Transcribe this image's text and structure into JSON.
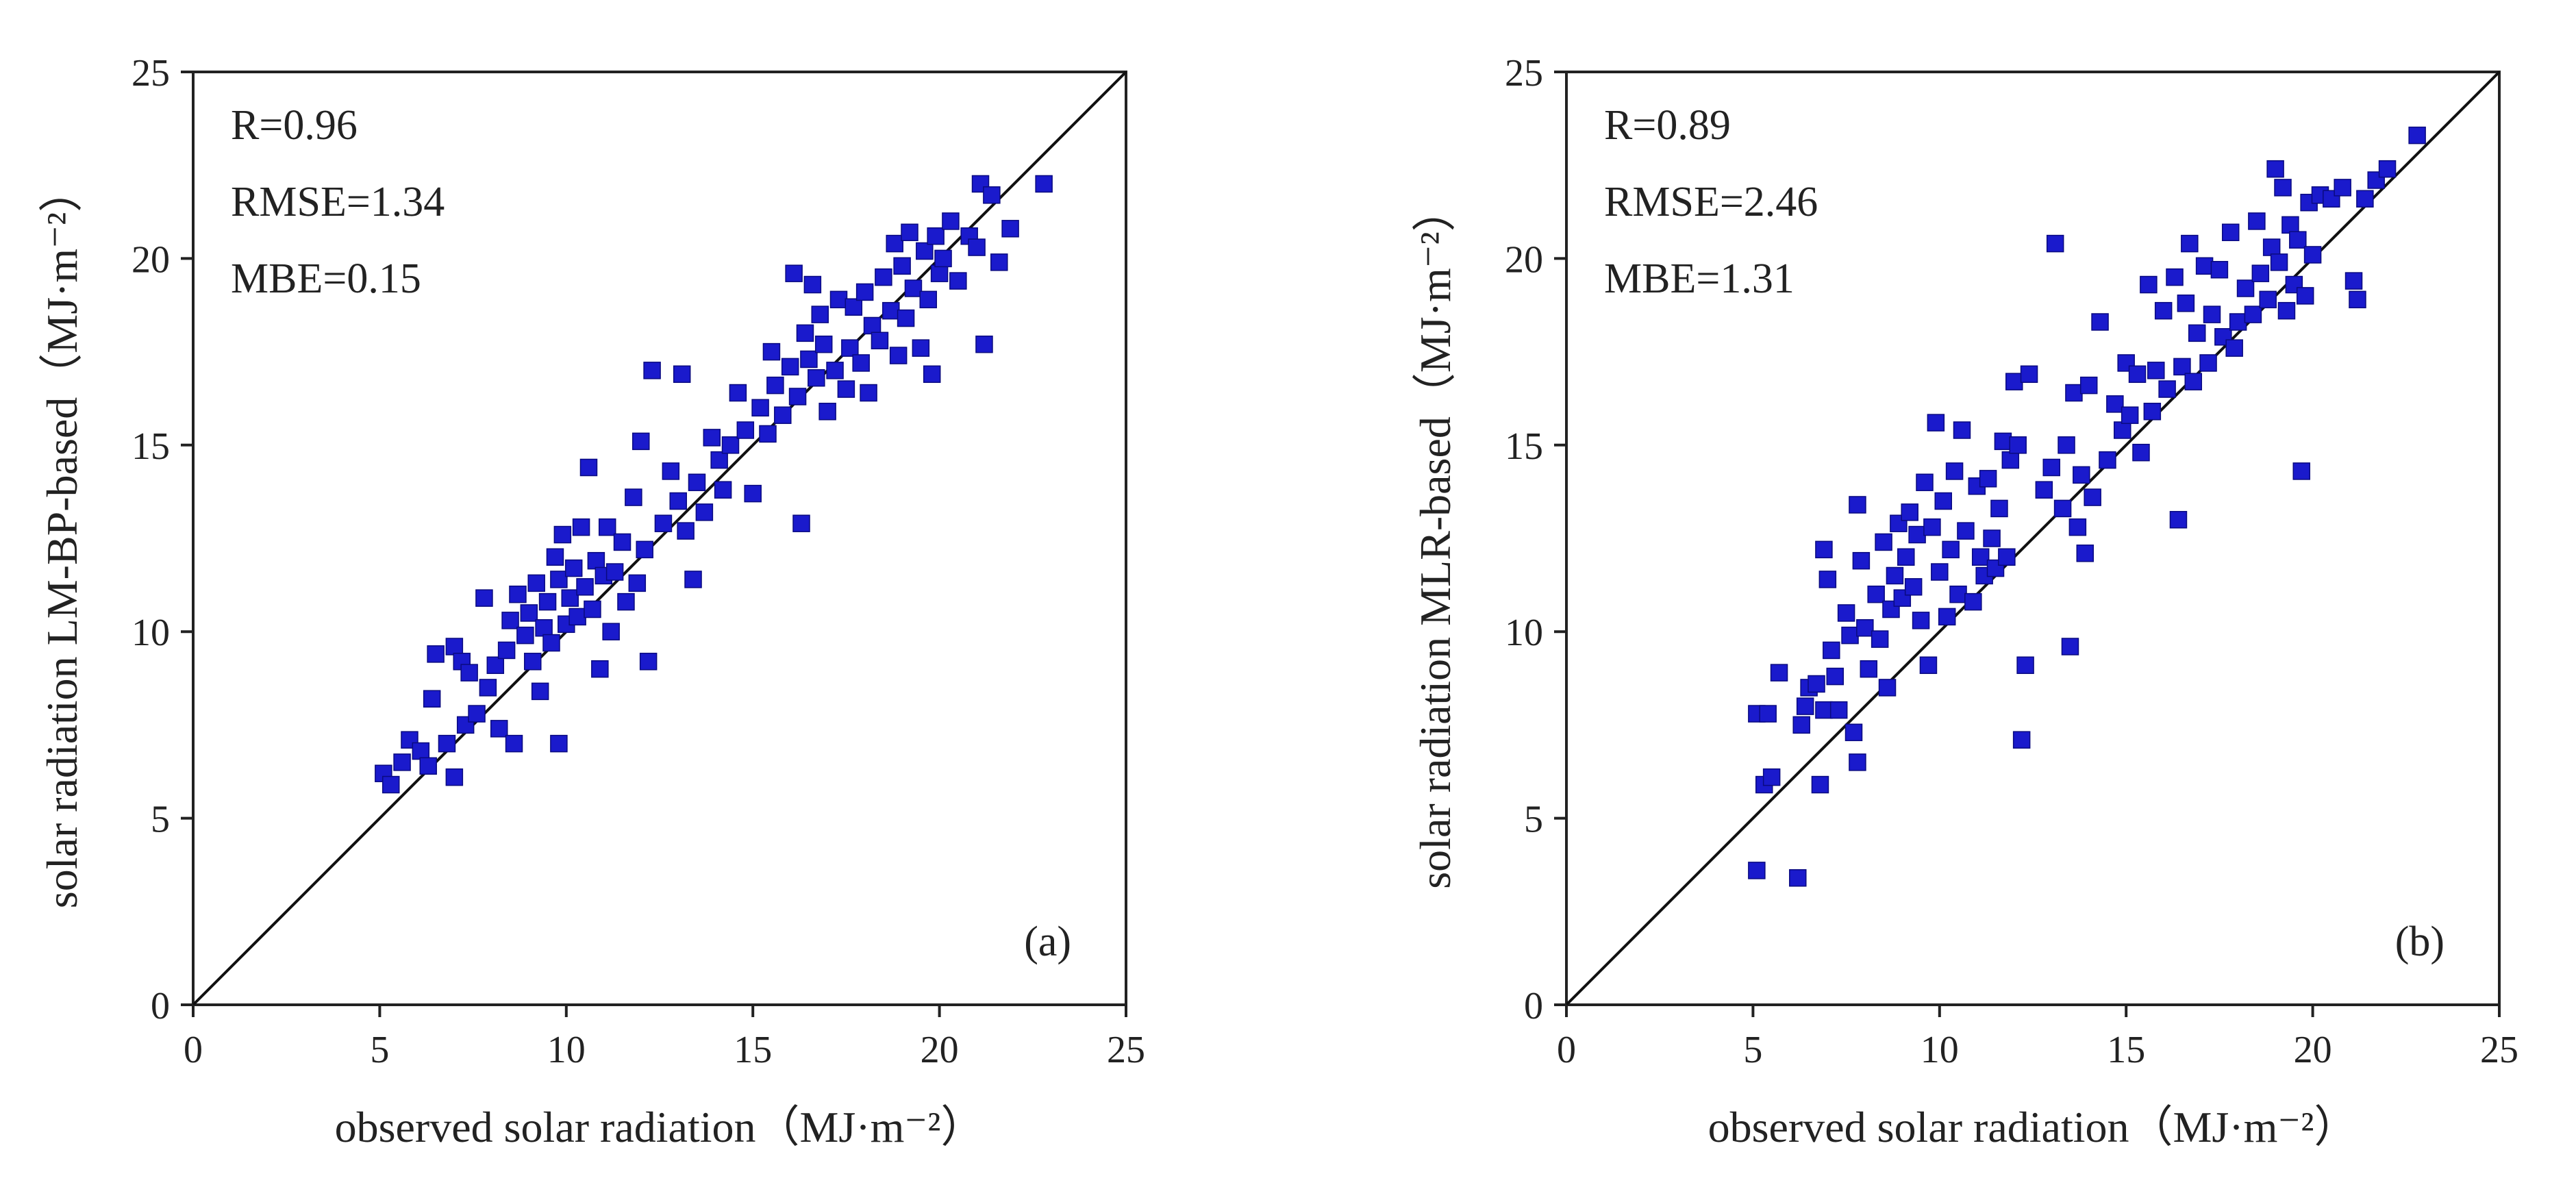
{
  "colors": {
    "point": "#1a1acc",
    "point_stroke": "#0a0a80",
    "axis": "#222222",
    "line": "#111111"
  },
  "chart_data": [
    {
      "type": "scatter",
      "panel_label": "(a)",
      "xlabel": "observed solar radiation（MJ·m⁻²）",
      "ylabel": "solar radiation LM-BP-based（MJ·m⁻²）",
      "xlim": [
        0,
        25
      ],
      "ylim": [
        0,
        25
      ],
      "xticks": [
        "0",
        "5",
        "10",
        "15",
        "20",
        "25"
      ],
      "yticks": [
        "0",
        "5",
        "10",
        "15",
        "20",
        "25"
      ],
      "grid": false,
      "reference_line": "1:1",
      "stats": [
        "R=0.96",
        "RMSE=1.34",
        "MBE=0.15"
      ],
      "points": [
        [
          5.1,
          6.2
        ],
        [
          5.3,
          5.9
        ],
        [
          5.6,
          6.5
        ],
        [
          5.8,
          7.1
        ],
        [
          6.1,
          6.8
        ],
        [
          6.3,
          6.4
        ],
        [
          6.4,
          8.2
        ],
        [
          6.5,
          9.4
        ],
        [
          6.8,
          7.0
        ],
        [
          7.0,
          6.1
        ],
        [
          7.0,
          9.6
        ],
        [
          7.2,
          9.2
        ],
        [
          7.3,
          7.5
        ],
        [
          7.4,
          8.9
        ],
        [
          7.6,
          7.8
        ],
        [
          7.8,
          10.9
        ],
        [
          7.9,
          8.5
        ],
        [
          8.1,
          9.1
        ],
        [
          8.2,
          7.4
        ],
        [
          8.4,
          9.5
        ],
        [
          8.5,
          10.3
        ],
        [
          8.6,
          7.0
        ],
        [
          8.7,
          11.0
        ],
        [
          8.9,
          9.9
        ],
        [
          9.0,
          10.5
        ],
        [
          9.1,
          9.2
        ],
        [
          9.2,
          11.3
        ],
        [
          9.3,
          8.4
        ],
        [
          9.4,
          10.1
        ],
        [
          9.5,
          10.8
        ],
        [
          9.6,
          9.7
        ],
        [
          9.7,
          12.0
        ],
        [
          9.8,
          11.4
        ],
        [
          9.8,
          7.0
        ],
        [
          9.9,
          12.6
        ],
        [
          10.0,
          10.2
        ],
        [
          10.1,
          10.9
        ],
        [
          10.2,
          11.7
        ],
        [
          10.3,
          10.4
        ],
        [
          10.4,
          12.8
        ],
        [
          10.5,
          11.2
        ],
        [
          10.6,
          14.4
        ],
        [
          10.7,
          10.6
        ],
        [
          10.8,
          11.9
        ],
        [
          10.9,
          9.0
        ],
        [
          11.0,
          11.5
        ],
        [
          11.1,
          12.8
        ],
        [
          11.2,
          10.0
        ],
        [
          11.3,
          11.6
        ],
        [
          11.5,
          12.4
        ],
        [
          11.6,
          10.8
        ],
        [
          11.8,
          13.6
        ],
        [
          11.9,
          11.3
        ],
        [
          12.0,
          15.1
        ],
        [
          12.1,
          12.2
        ],
        [
          12.2,
          9.2
        ],
        [
          12.3,
          17.0
        ],
        [
          12.6,
          12.9
        ],
        [
          12.8,
          14.3
        ],
        [
          13.0,
          13.5
        ],
        [
          13.1,
          16.9
        ],
        [
          13.2,
          12.7
        ],
        [
          13.4,
          11.4
        ],
        [
          13.5,
          14.0
        ],
        [
          13.7,
          13.2
        ],
        [
          13.9,
          15.2
        ],
        [
          14.1,
          14.6
        ],
        [
          14.2,
          13.8
        ],
        [
          14.4,
          15.0
        ],
        [
          14.6,
          16.4
        ],
        [
          14.8,
          15.4
        ],
        [
          15.0,
          13.7
        ],
        [
          15.2,
          16.0
        ],
        [
          15.4,
          15.3
        ],
        [
          15.5,
          17.5
        ],
        [
          15.6,
          16.6
        ],
        [
          15.8,
          15.8
        ],
        [
          16.0,
          17.1
        ],
        [
          16.1,
          19.6
        ],
        [
          16.2,
          16.3
        ],
        [
          16.3,
          12.9
        ],
        [
          16.4,
          18.0
        ],
        [
          16.5,
          17.3
        ],
        [
          16.6,
          19.3
        ],
        [
          16.7,
          16.8
        ],
        [
          16.8,
          18.5
        ],
        [
          16.9,
          17.7
        ],
        [
          17.0,
          15.9
        ],
        [
          17.2,
          17.0
        ],
        [
          17.3,
          18.9
        ],
        [
          17.5,
          16.5
        ],
        [
          17.6,
          17.6
        ],
        [
          17.7,
          18.7
        ],
        [
          17.9,
          17.2
        ],
        [
          18.0,
          19.1
        ],
        [
          18.1,
          16.4
        ],
        [
          18.2,
          18.2
        ],
        [
          18.4,
          17.8
        ],
        [
          18.5,
          19.5
        ],
        [
          18.7,
          18.6
        ],
        [
          18.8,
          20.4
        ],
        [
          18.9,
          17.4
        ],
        [
          19.0,
          19.8
        ],
        [
          19.1,
          18.4
        ],
        [
          19.2,
          20.7
        ],
        [
          19.3,
          19.2
        ],
        [
          19.5,
          17.6
        ],
        [
          19.6,
          20.2
        ],
        [
          19.7,
          18.9
        ],
        [
          19.8,
          16.9
        ],
        [
          19.9,
          20.6
        ],
        [
          20.0,
          19.6
        ],
        [
          20.1,
          20.0
        ],
        [
          20.3,
          21.0
        ],
        [
          20.5,
          19.4
        ],
        [
          20.8,
          20.6
        ],
        [
          21.0,
          20.3
        ],
        [
          21.1,
          22.0
        ],
        [
          21.2,
          17.7
        ],
        [
          21.4,
          21.7
        ],
        [
          21.6,
          19.9
        ],
        [
          21.9,
          20.8
        ],
        [
          22.8,
          22.0
        ]
      ]
    },
    {
      "type": "scatter",
      "panel_label": "(b)",
      "xlabel": "observed solar radiation（MJ·m⁻²）",
      "ylabel": "solar radiation MLR-based（MJ·m⁻²）",
      "xlim": [
        0,
        25
      ],
      "ylim": [
        0,
        25
      ],
      "xticks": [
        "0",
        "5",
        "10",
        "15",
        "20",
        "25"
      ],
      "yticks": [
        "0",
        "5",
        "10",
        "15",
        "20",
        "25"
      ],
      "grid": false,
      "reference_line": "1:1",
      "stats": [
        "R=0.89",
        "RMSE=2.46",
        "MBE=1.31"
      ],
      "points": [
        [
          5.1,
          3.6
        ],
        [
          5.1,
          7.8
        ],
        [
          5.3,
          5.9
        ],
        [
          5.4,
          7.8
        ],
        [
          5.5,
          6.1
        ],
        [
          5.7,
          8.9
        ],
        [
          6.2,
          3.4
        ],
        [
          6.3,
          7.5
        ],
        [
          6.4,
          8.0
        ],
        [
          6.5,
          8.5
        ],
        [
          6.7,
          8.6
        ],
        [
          6.8,
          5.9
        ],
        [
          6.9,
          12.2
        ],
        [
          6.9,
          7.9
        ],
        [
          7.0,
          11.4
        ],
        [
          7.1,
          9.5
        ],
        [
          7.2,
          8.8
        ],
        [
          7.3,
          7.9
        ],
        [
          7.5,
          10.5
        ],
        [
          7.6,
          9.9
        ],
        [
          7.7,
          7.3
        ],
        [
          7.8,
          6.5
        ],
        [
          7.8,
          13.4
        ],
        [
          7.9,
          11.9
        ],
        [
          8.0,
          10.1
        ],
        [
          8.1,
          9.0
        ],
        [
          8.3,
          11.0
        ],
        [
          8.4,
          9.8
        ],
        [
          8.5,
          12.4
        ],
        [
          8.6,
          8.5
        ],
        [
          8.7,
          10.6
        ],
        [
          8.8,
          11.5
        ],
        [
          8.9,
          12.9
        ],
        [
          9.0,
          10.9
        ],
        [
          9.1,
          12.0
        ],
        [
          9.2,
          13.2
        ],
        [
          9.3,
          11.2
        ],
        [
          9.4,
          12.6
        ],
        [
          9.5,
          10.3
        ],
        [
          9.6,
          14.0
        ],
        [
          9.7,
          9.1
        ],
        [
          9.8,
          12.8
        ],
        [
          9.9,
          15.6
        ],
        [
          10.0,
          11.6
        ],
        [
          10.1,
          13.5
        ],
        [
          10.2,
          10.4
        ],
        [
          10.3,
          12.2
        ],
        [
          10.4,
          14.3
        ],
        [
          10.5,
          11.0
        ],
        [
          10.6,
          15.4
        ],
        [
          10.7,
          12.7
        ],
        [
          10.9,
          10.8
        ],
        [
          11.0,
          13.9
        ],
        [
          11.1,
          12.0
        ],
        [
          11.2,
          11.5
        ],
        [
          11.3,
          14.1
        ],
        [
          11.4,
          12.5
        ],
        [
          11.5,
          11.7
        ],
        [
          11.6,
          13.3
        ],
        [
          11.7,
          15.1
        ],
        [
          11.8,
          12.0
        ],
        [
          11.9,
          14.6
        ],
        [
          12.0,
          16.7
        ],
        [
          12.1,
          15.0
        ],
        [
          12.2,
          7.1
        ],
        [
          12.3,
          9.1
        ],
        [
          12.4,
          16.9
        ],
        [
          12.8,
          13.8
        ],
        [
          13.0,
          14.4
        ],
        [
          13.1,
          20.4
        ],
        [
          13.3,
          13.3
        ],
        [
          13.4,
          15.0
        ],
        [
          13.5,
          9.6
        ],
        [
          13.6,
          16.4
        ],
        [
          13.7,
          12.8
        ],
        [
          13.8,
          14.2
        ],
        [
          13.9,
          12.1
        ],
        [
          14.0,
          16.6
        ],
        [
          14.1,
          13.6
        ],
        [
          14.3,
          18.3
        ],
        [
          14.5,
          14.6
        ],
        [
          14.7,
          16.1
        ],
        [
          14.9,
          15.4
        ],
        [
          15.0,
          17.2
        ],
        [
          15.1,
          15.8
        ],
        [
          15.3,
          16.9
        ],
        [
          15.4,
          14.8
        ],
        [
          15.6,
          19.3
        ],
        [
          15.7,
          15.9
        ],
        [
          15.8,
          17.0
        ],
        [
          16.0,
          18.6
        ],
        [
          16.1,
          16.5
        ],
        [
          16.3,
          19.5
        ],
        [
          16.4,
          13.0
        ],
        [
          16.5,
          17.1
        ],
        [
          16.6,
          18.8
        ],
        [
          16.7,
          20.4
        ],
        [
          16.8,
          16.7
        ],
        [
          16.9,
          18.0
        ],
        [
          17.1,
          19.8
        ],
        [
          17.2,
          17.2
        ],
        [
          17.3,
          18.5
        ],
        [
          17.5,
          19.7
        ],
        [
          17.6,
          17.9
        ],
        [
          17.8,
          20.7
        ],
        [
          17.9,
          17.6
        ],
        [
          18.0,
          18.3
        ],
        [
          18.2,
          19.2
        ],
        [
          18.4,
          18.5
        ],
        [
          18.5,
          21.0
        ],
        [
          18.6,
          19.6
        ],
        [
          18.8,
          18.9
        ],
        [
          18.9,
          20.3
        ],
        [
          19.0,
          22.4
        ],
        [
          19.1,
          19.9
        ],
        [
          19.2,
          21.9
        ],
        [
          19.3,
          18.6
        ],
        [
          19.4,
          20.9
        ],
        [
          19.5,
          19.3
        ],
        [
          19.6,
          20.5
        ],
        [
          19.7,
          14.3
        ],
        [
          19.8,
          19.0
        ],
        [
          19.9,
          21.5
        ],
        [
          20.0,
          20.1
        ],
        [
          20.2,
          21.7
        ],
        [
          20.5,
          21.6
        ],
        [
          20.8,
          21.9
        ],
        [
          21.1,
          19.4
        ],
        [
          21.2,
          18.9
        ],
        [
          21.4,
          21.6
        ],
        [
          21.7,
          22.1
        ],
        [
          22.0,
          22.4
        ],
        [
          22.8,
          23.3
        ]
      ]
    }
  ]
}
